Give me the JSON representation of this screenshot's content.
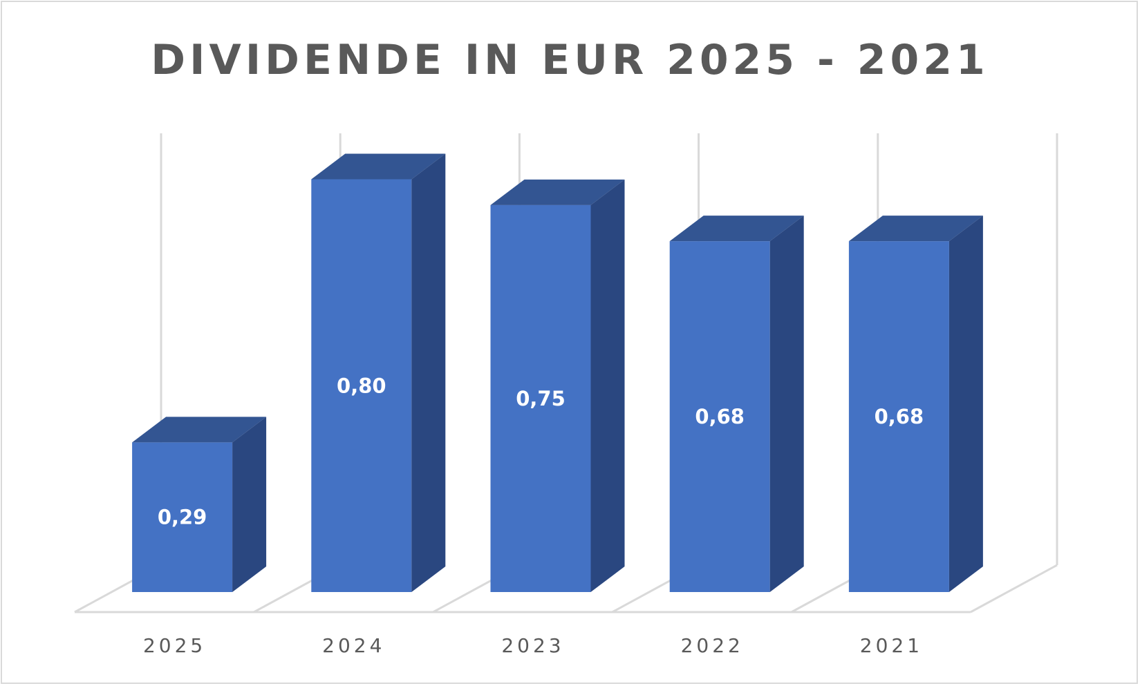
{
  "chart_data": {
    "type": "bar",
    "title": "DIVIDENDE IN EUR 2025 - 2021",
    "categories": [
      "2025",
      "2024",
      "2023",
      "2022",
      "2021"
    ],
    "values": [
      0.29,
      0.8,
      0.75,
      0.68,
      0.68
    ],
    "data_labels": [
      "0,29",
      "0,80",
      "0,75",
      "0,68",
      "0,68"
    ],
    "xlabel": "",
    "ylabel": "",
    "ylim": [
      0,
      0.8
    ],
    "grid": true,
    "legend": "none",
    "colors": {
      "front": "#4472c4",
      "top": "#335592",
      "side": "#2a4780",
      "grid": "#d9d9d9"
    }
  }
}
